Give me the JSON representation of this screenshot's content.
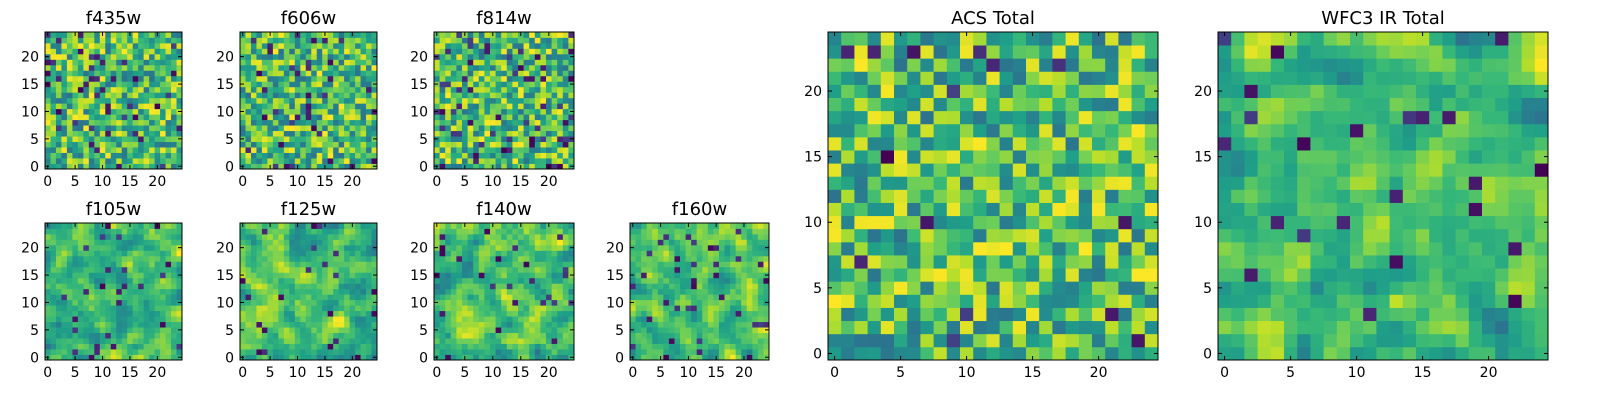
{
  "colormap": "viridis",
  "chart_data": [
    {
      "type": "heatmap",
      "title": "f435w",
      "grid_size": 25,
      "xticks": [
        0,
        5,
        10,
        15,
        20
      ],
      "yticks": [
        0,
        5,
        10,
        15,
        20
      ],
      "seed": 11,
      "smooth": 0,
      "dark": 0.07,
      "xlim": [
        -0.5,
        24.5
      ],
      "ylim": [
        -0.5,
        24.5
      ]
    },
    {
      "type": "heatmap",
      "title": "f606w",
      "grid_size": 25,
      "xticks": [
        0,
        5,
        10,
        15,
        20
      ],
      "yticks": [
        0,
        5,
        10,
        15,
        20
      ],
      "seed": 23,
      "smooth": 0,
      "dark": 0.05,
      "xlim": [
        -0.5,
        24.5
      ],
      "ylim": [
        -0.5,
        24.5
      ]
    },
    {
      "type": "heatmap",
      "title": "f814w",
      "grid_size": 25,
      "xticks": [
        0,
        5,
        10,
        15,
        20
      ],
      "yticks": [
        0,
        5,
        10,
        15,
        20
      ],
      "seed": 37,
      "smooth": 0,
      "dark": 0.07,
      "xlim": [
        -0.5,
        24.5
      ],
      "ylim": [
        -0.5,
        24.5
      ]
    },
    {
      "type": "heatmap",
      "title": "f105w",
      "grid_size": 25,
      "xticks": [
        0,
        5,
        10,
        15,
        20
      ],
      "yticks": [
        0,
        5,
        10,
        15,
        20
      ],
      "seed": 41,
      "smooth": 1,
      "dark": 0.04,
      "xlim": [
        -0.5,
        24.5
      ],
      "ylim": [
        -0.5,
        24.5
      ]
    },
    {
      "type": "heatmap",
      "title": "f125w",
      "grid_size": 25,
      "xticks": [
        0,
        5,
        10,
        15,
        20
      ],
      "yticks": [
        0,
        5,
        10,
        15,
        20
      ],
      "seed": 53,
      "smooth": 1,
      "dark": 0.04,
      "xlim": [
        -0.5,
        24.5
      ],
      "ylim": [
        -0.5,
        24.5
      ]
    },
    {
      "type": "heatmap",
      "title": "f140w",
      "grid_size": 25,
      "xticks": [
        0,
        5,
        10,
        15,
        20
      ],
      "yticks": [
        0,
        5,
        10,
        15,
        20
      ],
      "seed": 67,
      "smooth": 1,
      "dark": 0.04,
      "xlim": [
        -0.5,
        24.5
      ],
      "ylim": [
        -0.5,
        24.5
      ]
    },
    {
      "type": "heatmap",
      "title": "f160w",
      "grid_size": 25,
      "xticks": [
        0,
        5,
        10,
        15,
        20
      ],
      "yticks": [
        0,
        5,
        10,
        15,
        20
      ],
      "seed": 79,
      "smooth": 1,
      "dark": 0.05,
      "xlim": [
        -0.5,
        24.5
      ],
      "ylim": [
        -0.5,
        24.5
      ]
    },
    {
      "type": "heatmap",
      "title": "ACS Total",
      "grid_size": 25,
      "xticks": [
        0,
        5,
        10,
        15,
        20
      ],
      "yticks": [
        0,
        5,
        10,
        15,
        20
      ],
      "seed": 97,
      "smooth": 0,
      "dark": 0.015,
      "xlim": [
        -0.5,
        24.5
      ],
      "ylim": [
        -0.5,
        24.5
      ]
    },
    {
      "type": "heatmap",
      "title": "WFC3 IR Total",
      "grid_size": 25,
      "xticks": [
        0,
        5,
        10,
        15,
        20
      ],
      "yticks": [
        0,
        5,
        10,
        15,
        20
      ],
      "seed": 113,
      "smooth": 1,
      "dark": 0.03,
      "xlim": [
        -0.5,
        24.5
      ],
      "ylim": [
        -0.5,
        24.5
      ]
    }
  ]
}
